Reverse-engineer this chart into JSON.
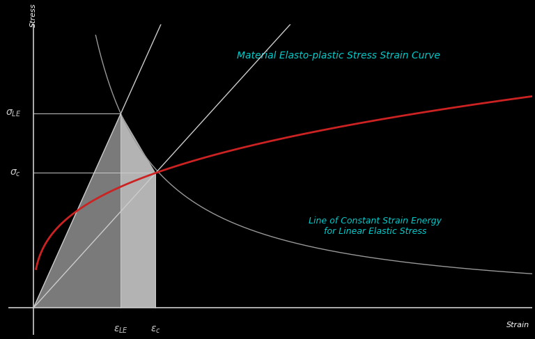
{
  "background_color": "#000000",
  "title_text": "Material Elasto-plastic Stress Strain Curve",
  "title_color": "#00cccc",
  "title_fontsize": 10,
  "xlabel": "Strain",
  "ylabel": "Stress",
  "label_color": "#ffffff",
  "sigma_LE": 0.72,
  "sigma_c": 0.5,
  "eps_LE": 0.175,
  "eps_c": 0.245,
  "annotation_color": "#cccccc",
  "curve_color": "#cc2222",
  "hyperbola_color": "#999999",
  "line_color": "#cccccc",
  "shaded_dark": "#888888",
  "shaded_light": "#c8c8c8",
  "annotation2_text": "Line of Constant Strain Energy\nfor Linear Elastic Stress",
  "annotation2_color": "#00cccc",
  "x_max": 1.0,
  "y_max": 1.0
}
